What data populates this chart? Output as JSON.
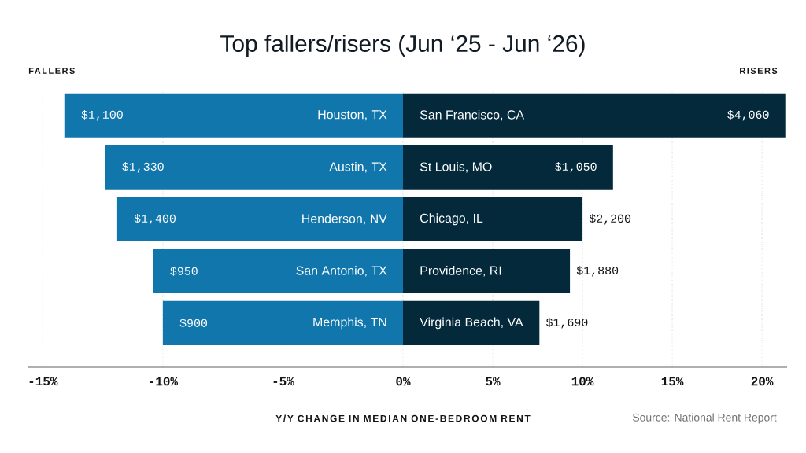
{
  "chart_data": [
    {
      "type": "bar",
      "orientation": "horizontal",
      "title": "Top fallers/risers (Jun ‘25 - Jun ‘26)",
      "subtitle": "FALLERS",
      "xlabel": "Y/Y CHANGE IN MEDIAN ONE-BEDROOM RENT",
      "categories": [
        "Houston, TX",
        "Austin, TX",
        "Henderson, NV",
        "San Antonio, TX",
        "Memphis, TN"
      ],
      "values": [
        -14.1,
        -12.4,
        -11.9,
        -10.4,
        -10.0
      ],
      "color": "#1076ab",
      "xlim": [
        -15.6,
        0
      ],
      "xticks": [
        {
          "value": -15,
          "label": "-15%"
        },
        {
          "value": -10,
          "label": "-10%"
        },
        {
          "value": -5,
          "label": "-5%"
        },
        {
          "value": 0,
          "label": "0%"
        }
      ],
      "grid": "x",
      "annotations": [
        {
          "text": "$1,100",
          "x": -14.1,
          "y": "Houston, TX"
        },
        {
          "text": "$1,330",
          "x": -12.4,
          "y": "Austin, TX"
        },
        {
          "text": "$1,400",
          "x": -11.9,
          "y": "Henderson, NV"
        },
        {
          "text": "$950",
          "x": -10.4,
          "y": "San Antonio, TX"
        },
        {
          "text": "$900",
          "x": -10.0,
          "y": "Memphis, TN"
        }
      ]
    },
    {
      "type": "bar",
      "orientation": "horizontal",
      "subtitle": "RISERS",
      "categories": [
        "San Francisco, CA",
        "St Louis, MO",
        "Chicago, IL",
        "Providence, RI",
        "Virginia Beach, VA"
      ],
      "values": [
        21.3,
        11.7,
        10.0,
        9.3,
        7.6
      ],
      "color": "#03293b",
      "xlim": [
        0,
        21.4
      ],
      "xticks": [
        {
          "value": 5,
          "label": "5%"
        },
        {
          "value": 10,
          "label": "10%"
        },
        {
          "value": 15,
          "label": "15%"
        },
        {
          "value": 20,
          "label": "20%"
        }
      ],
      "grid": "x",
      "annotations": [
        {
          "text": "$4,060",
          "x": 21.3,
          "y": "San Francisco, CA"
        },
        {
          "text": "$1,050",
          "x": 11.7,
          "y": "St Louis, MO"
        },
        {
          "text": "$2,200",
          "x": 10.0,
          "y": "Chicago, IL"
        },
        {
          "text": "$1,880",
          "x": 9.3,
          "y": "Providence, RI"
        },
        {
          "text": "$1,690",
          "x": 7.6,
          "y": "Virginia Beach, VA"
        },
        "Source: National Rent Report"
      ]
    }
  ]
}
